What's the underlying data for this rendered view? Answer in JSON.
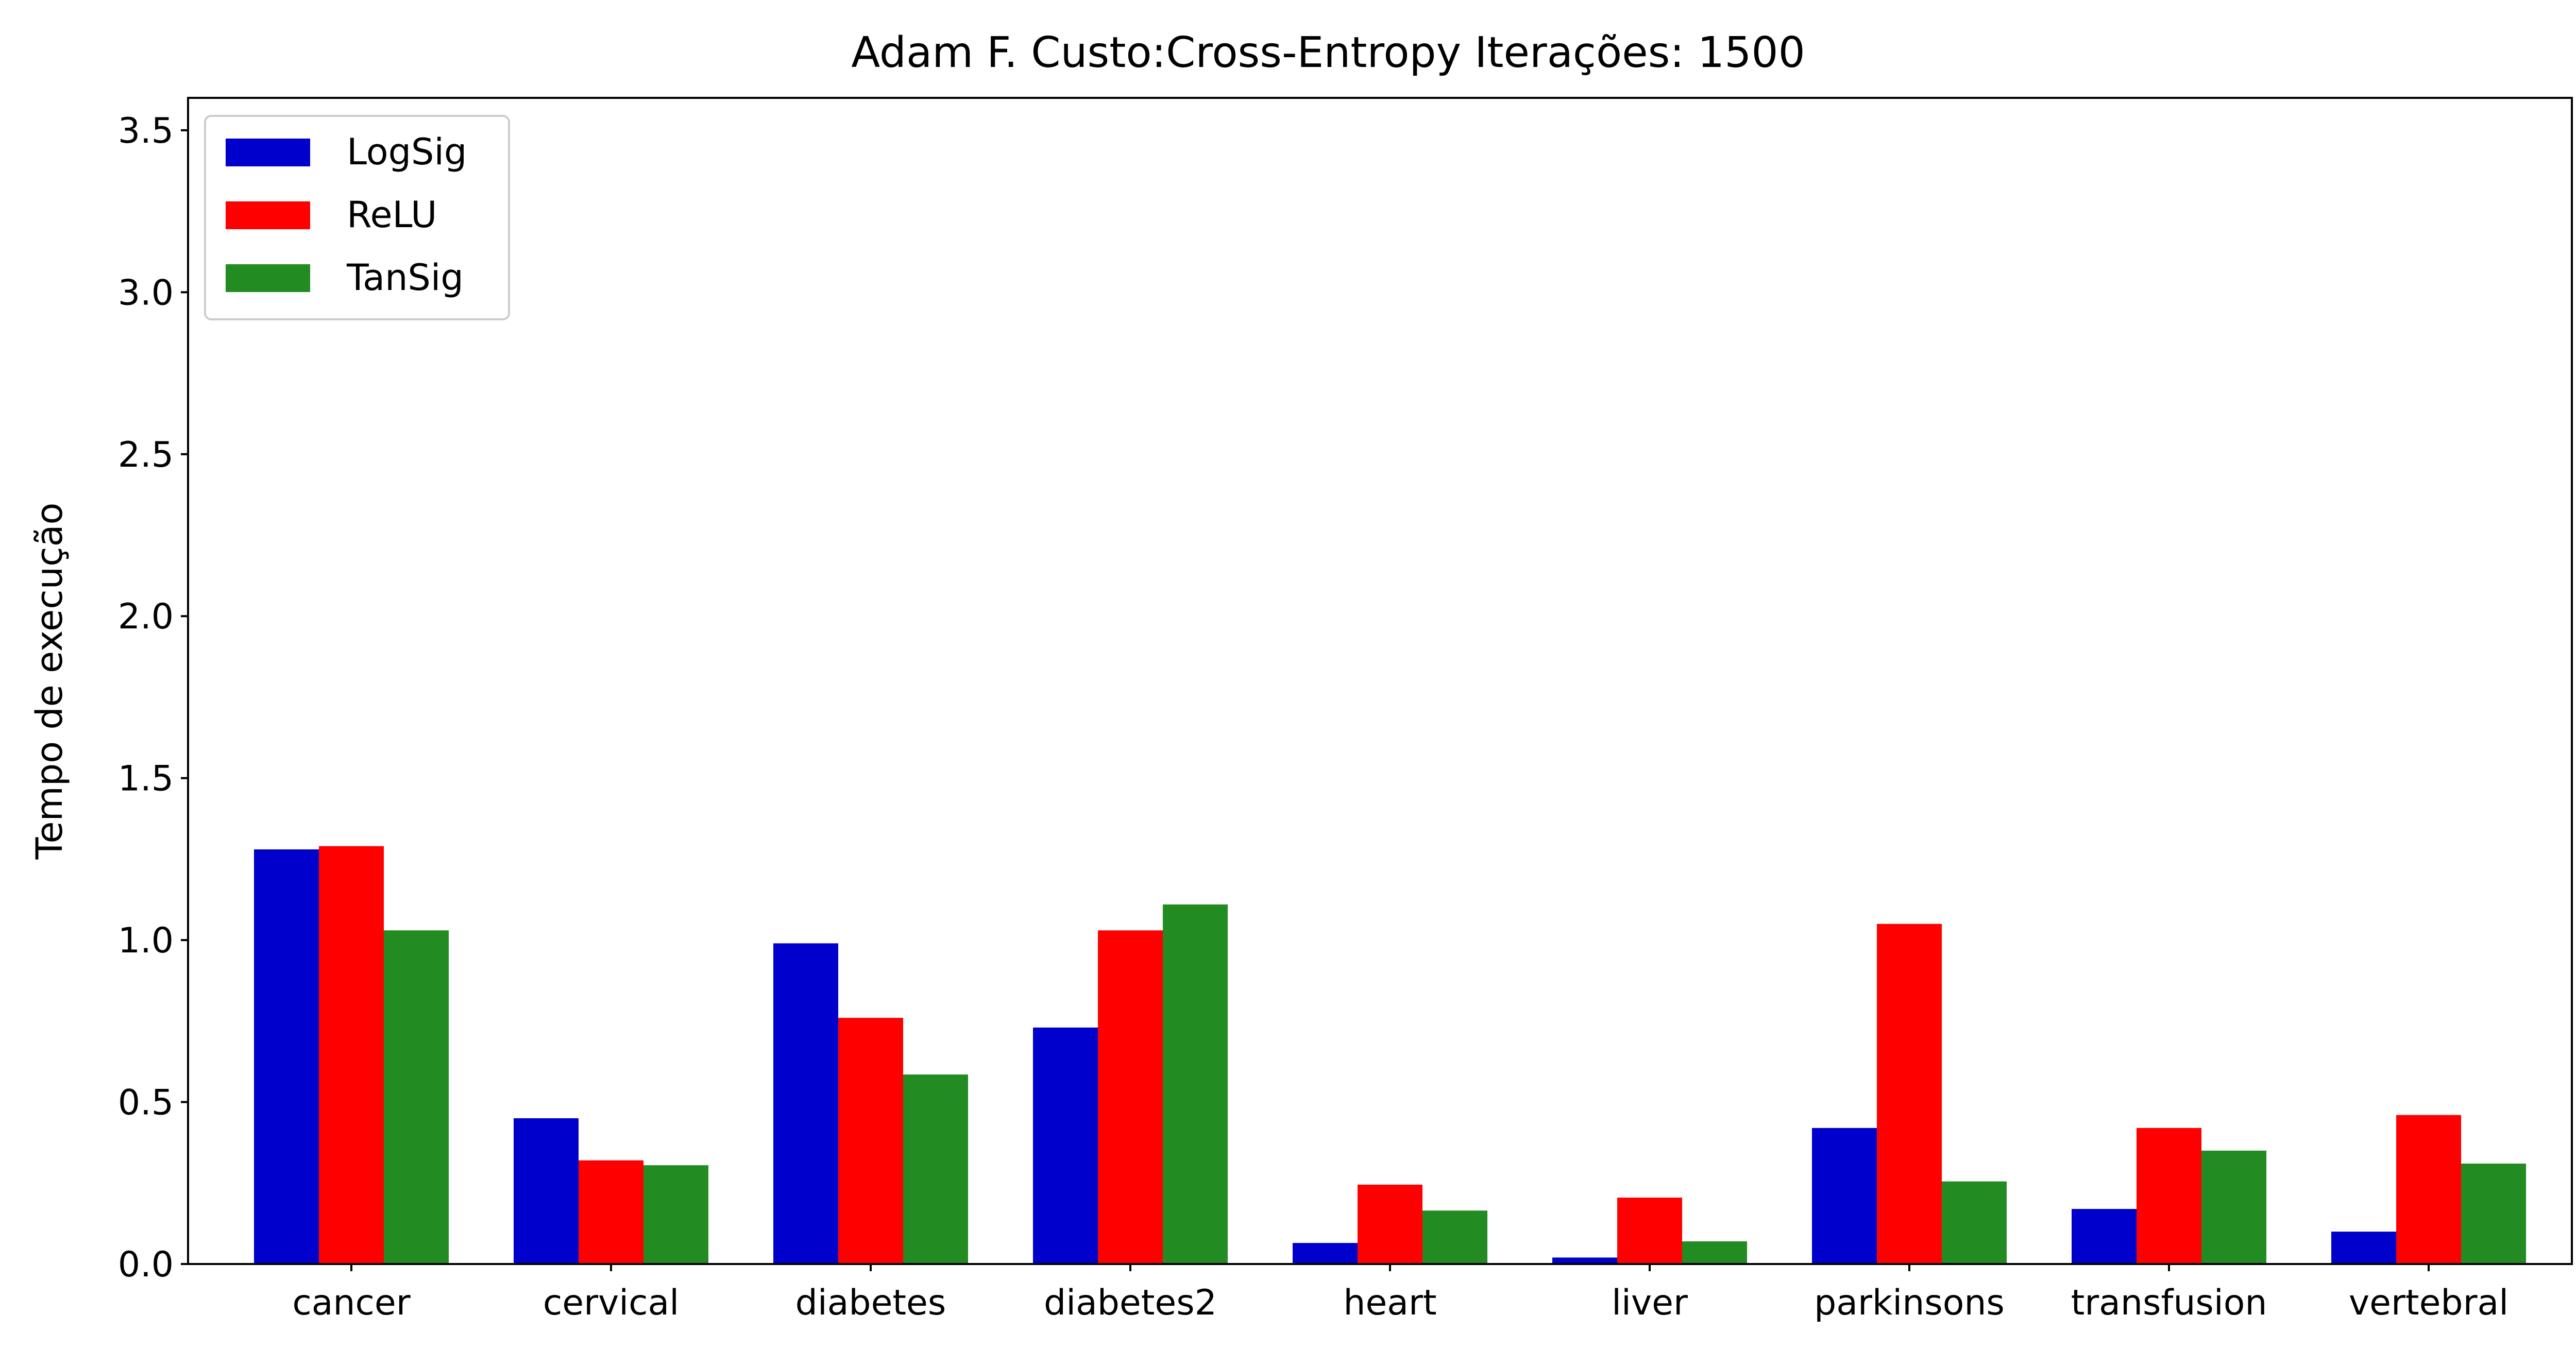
{
  "chart_data": {
    "type": "bar",
    "title": "Adam F. Custo:Cross-Entropy Iterações: 1500",
    "xlabel": "",
    "ylabel": "Tempo de execução",
    "ylim": [
      0,
      3.6
    ],
    "yticks": [
      "0.0",
      "0.5",
      "1.0",
      "1.5",
      "2.0",
      "2.5",
      "3.0",
      "3.5"
    ],
    "grid": false,
    "legend_position": "top-left",
    "categories": [
      "cancer",
      "cervical",
      "diabetes",
      "diabetes2",
      "heart",
      "liver",
      "parkinsons",
      "transfusion",
      "vertebral"
    ],
    "series": [
      {
        "name": "LogSig",
        "color": "#0000cd",
        "values": [
          1.28,
          0.45,
          0.99,
          0.73,
          0.065,
          0.02,
          0.42,
          0.17,
          0.1
        ]
      },
      {
        "name": "ReLU",
        "color": "#ff0000",
        "values": [
          1.29,
          0.32,
          0.76,
          1.03,
          0.245,
          0.205,
          1.05,
          0.42,
          0.46
        ]
      },
      {
        "name": "TanSig",
        "color": "#228b22",
        "values": [
          1.03,
          0.305,
          0.585,
          1.11,
          0.165,
          0.07,
          0.255,
          0.35,
          0.31
        ]
      }
    ]
  }
}
